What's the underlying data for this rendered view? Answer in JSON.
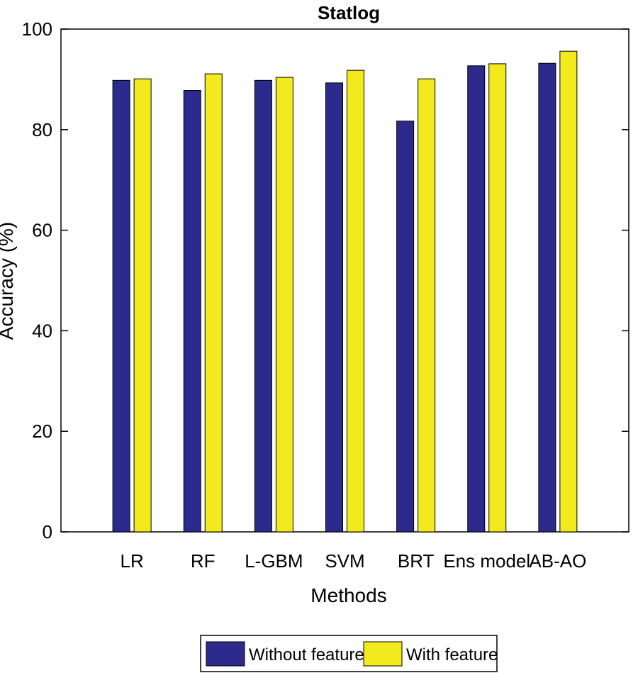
{
  "chart_data": {
    "type": "bar",
    "title": "Statlog",
    "xlabel": "Methods",
    "ylabel": "Accuracy (%)",
    "ylim": [
      0,
      100
    ],
    "yticks": [
      0,
      20,
      40,
      60,
      80,
      100
    ],
    "categories": [
      "LR",
      "RF",
      "L-GBM",
      "SVM",
      "BRT",
      "Ens model",
      "AB-AO"
    ],
    "series": [
      {
        "name": "Without feature",
        "color": "#2c2a8c",
        "values": [
          89.8,
          87.8,
          89.8,
          89.3,
          81.7,
          92.7,
          93.2
        ]
      },
      {
        "name": "With feature",
        "color": "#f2ea1c",
        "values": [
          90.1,
          91.1,
          90.4,
          91.8,
          90.1,
          93.1,
          95.6
        ]
      }
    ],
    "grid": false,
    "legend_position": "bottom-center"
  }
}
